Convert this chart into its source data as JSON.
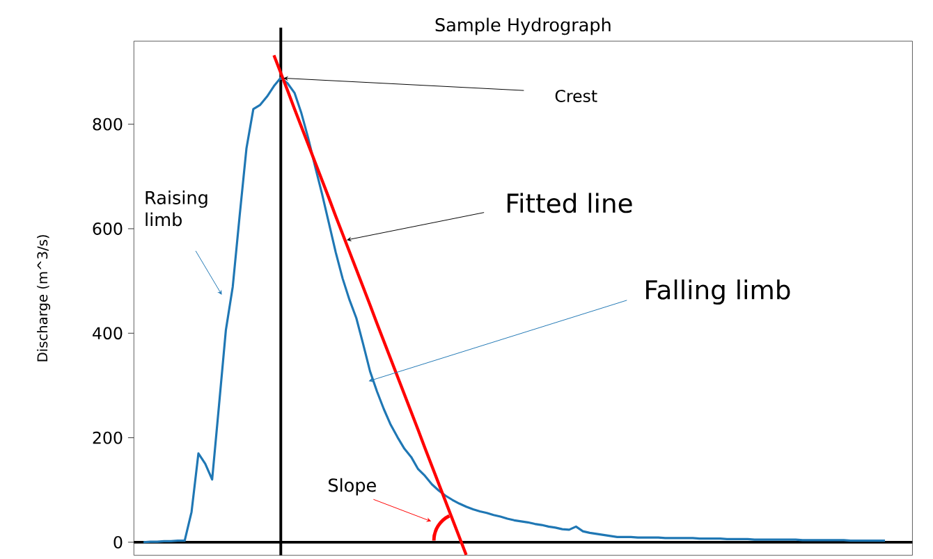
{
  "chart_data": {
    "type": "line",
    "title": "Sample Hydrograph",
    "ylabel": "Discharge (m^3/s)",
    "ylim": [
      -25,
      959
    ],
    "yticks": [
      0,
      200,
      400,
      600,
      800
    ],
    "tick_labels": "y",
    "categories": [
      null,
      null,
      null,
      null,
      null,
      null,
      null,
      null,
      null,
      null,
      null,
      null,
      null,
      null,
      null,
      null,
      null,
      null,
      null,
      null,
      null,
      null,
      null,
      null,
      null,
      null,
      null,
      null,
      null,
      null,
      null,
      null,
      null,
      null,
      null,
      null,
      null,
      null,
      null,
      null,
      null,
      null,
      null,
      null,
      null,
      null,
      null,
      null,
      null,
      null,
      null,
      null,
      null,
      null,
      null,
      null,
      null,
      null,
      null,
      null,
      null,
      null,
      null,
      null,
      null,
      null,
      null,
      null,
      null,
      null,
      null,
      null,
      null,
      null,
      null,
      null,
      null,
      null,
      null,
      null,
      null,
      null,
      null,
      null,
      null,
      null,
      null,
      null,
      null,
      null,
      null,
      null,
      null,
      null,
      null,
      null,
      null,
      null,
      null,
      null,
      null,
      null,
      null,
      null,
      null,
      null,
      null,
      null,
      null
    ],
    "series": [
      {
        "color": "#1f77b4",
        "values": [
          0,
          1,
          1,
          2,
          2,
          3,
          3,
          58,
          170,
          150,
          120,
          262,
          406,
          489,
          624,
          754,
          829,
          837,
          853,
          873,
          889,
          878,
          860,
          821,
          773,
          719,
          667,
          611,
          555,
          505,
          464,
          429,
          379,
          327,
          289,
          255,
          225,
          201,
          179,
          163,
          140,
          127,
          111,
          99,
          89,
          81,
          74,
          68,
          63,
          59,
          56,
          52,
          49,
          45,
          42,
          40,
          38,
          35,
          33,
          30,
          28,
          25,
          24,
          30,
          21,
          18,
          16,
          14,
          12,
          10,
          10,
          10,
          9,
          9,
          9,
          9,
          8,
          8,
          8,
          8,
          8,
          7,
          7,
          7,
          7,
          6,
          6,
          6,
          6,
          5,
          5,
          5,
          5,
          5,
          5,
          5,
          4,
          4,
          4,
          4,
          4,
          4,
          4,
          3,
          3,
          3,
          3,
          3,
          3
        ]
      },
      {
        "color": "#ff0000",
        "values": [
          null,
          null,
          null,
          null,
          null,
          null,
          null,
          null,
          null,
          null,
          null,
          null,
          null,
          null,
          null,
          null,
          null,
          null,
          null,
          932,
          898,
          864,
          829,
          795,
          761,
          727,
          693,
          659,
          624,
          590,
          556,
          522,
          488,
          454,
          419,
          385,
          351,
          317,
          283,
          249,
          215,
          180,
          146,
          112,
          78,
          44,
          10,
          -24,
          null,
          null,
          null,
          null,
          null,
          null,
          null,
          null,
          null,
          null,
          null,
          null,
          null,
          null,
          null,
          null,
          null,
          null,
          null,
          null,
          null,
          null,
          null,
          null,
          null,
          null,
          null,
          null,
          null,
          null,
          null,
          null,
          null,
          null,
          null,
          null,
          null,
          null,
          null,
          null,
          null,
          null,
          null,
          null,
          null,
          null,
          null,
          null,
          null,
          null,
          null,
          null,
          null,
          null,
          null,
          null,
          null,
          null,
          null,
          null,
          null
        ]
      }
    ],
    "ref_lines": [
      {
        "axis": "y",
        "value": 0,
        "color": "#000000"
      }
    ],
    "annotations": [
      "Crest",
      "Fitted line",
      "Raising limb",
      "Falling limb",
      "Slope"
    ]
  }
}
